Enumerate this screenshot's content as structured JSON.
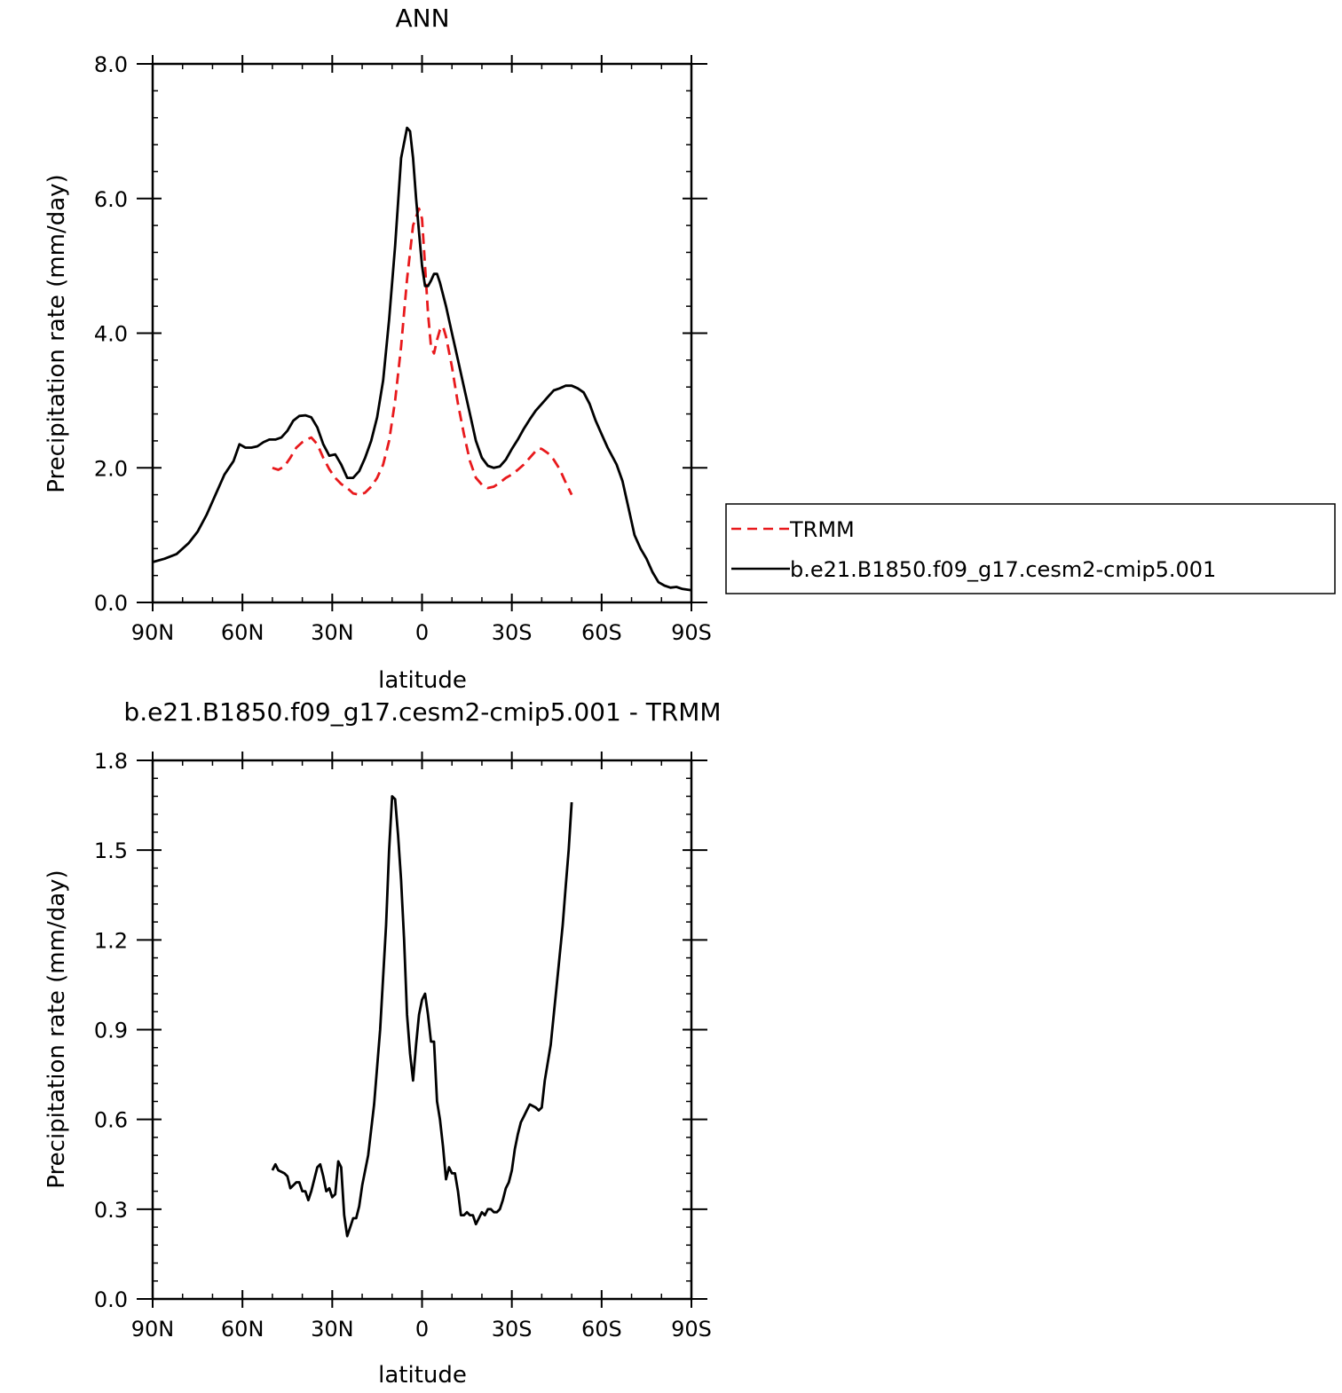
{
  "chart_data": [
    {
      "type": "line",
      "title": "ANN",
      "xlabel": "latitude",
      "ylabel": "Precipitation rate (mm/day)",
      "xlim": [
        90,
        -90
      ],
      "ylim": [
        0.0,
        8.0
      ],
      "x_ticks": [
        90,
        60,
        30,
        0,
        -30,
        -60,
        -90
      ],
      "x_tick_labels": [
        "90N",
        "60N",
        "30N",
        "0",
        "30S",
        "60S",
        "90S"
      ],
      "y_ticks": [
        0,
        2,
        4,
        6,
        8
      ],
      "y_tick_labels": [
        "0.0",
        "2.0",
        "4.0",
        "6.0",
        "8.0"
      ],
      "grid": false,
      "legend": "right",
      "series": [
        {
          "name": "TRMM",
          "color": "#e8191c",
          "dash": "dashed",
          "points": [
            [
              50,
              2.0
            ],
            [
              48,
              1.97
            ],
            [
              46,
              2.02
            ],
            [
              44,
              2.15
            ],
            [
              42,
              2.3
            ],
            [
              40,
              2.38
            ],
            [
              38,
              2.43
            ],
            [
              37,
              2.45
            ],
            [
              35,
              2.35
            ],
            [
              33,
              2.15
            ],
            [
              31,
              1.98
            ],
            [
              29,
              1.85
            ],
            [
              27,
              1.76
            ],
            [
              25,
              1.7
            ],
            [
              23,
              1.62
            ],
            [
              21,
              1.6
            ],
            [
              19,
              1.63
            ],
            [
              17,
              1.72
            ],
            [
              15,
              1.85
            ],
            [
              13,
              2.05
            ],
            [
              11,
              2.4
            ],
            [
              9,
              3.0
            ],
            [
              7,
              3.8
            ],
            [
              5,
              4.8
            ],
            [
              3,
              5.6
            ],
            [
              1,
              5.85
            ],
            [
              0,
              5.7
            ],
            [
              -1,
              5.0
            ],
            [
              -2,
              4.3
            ],
            [
              -3,
              3.8
            ],
            [
              -4,
              3.7
            ],
            [
              -5,
              3.9
            ],
            [
              -6,
              4.05
            ],
            [
              -7,
              4.1
            ],
            [
              -8,
              3.95
            ],
            [
              -10,
              3.5
            ],
            [
              -12,
              2.95
            ],
            [
              -14,
              2.5
            ],
            [
              -16,
              2.1
            ],
            [
              -18,
              1.85
            ],
            [
              -20,
              1.75
            ],
            [
              -22,
              1.7
            ],
            [
              -24,
              1.72
            ],
            [
              -26,
              1.78
            ],
            [
              -28,
              1.85
            ],
            [
              -30,
              1.9
            ],
            [
              -32,
              1.97
            ],
            [
              -34,
              2.05
            ],
            [
              -36,
              2.15
            ],
            [
              -38,
              2.25
            ],
            [
              -39,
              2.29
            ],
            [
              -40,
              2.28
            ],
            [
              -42,
              2.22
            ],
            [
              -44,
              2.12
            ],
            [
              -46,
              1.98
            ],
            [
              -48,
              1.78
            ],
            [
              -50,
              1.6
            ]
          ]
        },
        {
          "name": "b.e21.B1850.f09_g17.cesm2-cmip5.001",
          "color": "#000000",
          "dash": "solid",
          "points": [
            [
              90,
              0.6
            ],
            [
              86,
              0.65
            ],
            [
              82,
              0.72
            ],
            [
              78,
              0.88
            ],
            [
              75,
              1.05
            ],
            [
              72,
              1.3
            ],
            [
              69,
              1.6
            ],
            [
              66,
              1.9
            ],
            [
              63,
              2.1
            ],
            [
              61,
              2.35
            ],
            [
              59,
              2.3
            ],
            [
              57,
              2.3
            ],
            [
              55,
              2.32
            ],
            [
              53,
              2.38
            ],
            [
              51,
              2.42
            ],
            [
              49,
              2.42
            ],
            [
              47,
              2.45
            ],
            [
              45,
              2.55
            ],
            [
              43,
              2.7
            ],
            [
              41,
              2.77
            ],
            [
              39,
              2.78
            ],
            [
              37,
              2.75
            ],
            [
              35,
              2.6
            ],
            [
              33,
              2.35
            ],
            [
              31,
              2.18
            ],
            [
              29,
              2.2
            ],
            [
              27,
              2.05
            ],
            [
              25,
              1.85
            ],
            [
              23,
              1.85
            ],
            [
              21,
              1.95
            ],
            [
              19,
              2.15
            ],
            [
              17,
              2.4
            ],
            [
              15,
              2.75
            ],
            [
              13,
              3.3
            ],
            [
              11,
              4.2
            ],
            [
              9,
              5.3
            ],
            [
              7,
              6.6
            ],
            [
              5,
              7.05
            ],
            [
              4,
              7.0
            ],
            [
              3,
              6.6
            ],
            [
              2,
              6.0
            ],
            [
              1,
              5.5
            ],
            [
              0,
              5.0
            ],
            [
              -1,
              4.7
            ],
            [
              -2,
              4.7
            ],
            [
              -3,
              4.78
            ],
            [
              -4,
              4.88
            ],
            [
              -5,
              4.88
            ],
            [
              -6,
              4.75
            ],
            [
              -8,
              4.4
            ],
            [
              -10,
              4.0
            ],
            [
              -12,
              3.6
            ],
            [
              -14,
              3.2
            ],
            [
              -16,
              2.8
            ],
            [
              -18,
              2.4
            ],
            [
              -20,
              2.15
            ],
            [
              -22,
              2.03
            ],
            [
              -24,
              2.0
            ],
            [
              -26,
              2.02
            ],
            [
              -28,
              2.12
            ],
            [
              -30,
              2.28
            ],
            [
              -32,
              2.42
            ],
            [
              -34,
              2.58
            ],
            [
              -36,
              2.72
            ],
            [
              -38,
              2.85
            ],
            [
              -40,
              2.95
            ],
            [
              -42,
              3.05
            ],
            [
              -44,
              3.15
            ],
            [
              -46,
              3.18
            ],
            [
              -48,
              3.22
            ],
            [
              -50,
              3.22
            ],
            [
              -52,
              3.18
            ],
            [
              -54,
              3.12
            ],
            [
              -56,
              2.95
            ],
            [
              -58,
              2.7
            ],
            [
              -60,
              2.5
            ],
            [
              -62,
              2.3
            ],
            [
              -65,
              2.05
            ],
            [
              -67,
              1.8
            ],
            [
              -69,
              1.4
            ],
            [
              -71,
              1.0
            ],
            [
              -73,
              0.8
            ],
            [
              -75,
              0.65
            ],
            [
              -77,
              0.45
            ],
            [
              -79,
              0.3
            ],
            [
              -81,
              0.25
            ],
            [
              -83,
              0.22
            ],
            [
              -85,
              0.23
            ],
            [
              -87,
              0.2
            ],
            [
              -90,
              0.18
            ]
          ]
        }
      ]
    },
    {
      "type": "line",
      "title": "b.e21.B1850.f09_g17.cesm2-cmip5.001 - TRMM",
      "xlabel": "latitude",
      "ylabel": "Precipitation rate (mm/day)",
      "xlim": [
        90,
        -90
      ],
      "ylim": [
        0.0,
        1.8
      ],
      "x_ticks": [
        90,
        60,
        30,
        0,
        -30,
        -60,
        -90
      ],
      "x_tick_labels": [
        "90N",
        "60N",
        "30N",
        "0",
        "30S",
        "60S",
        "90S"
      ],
      "y_ticks": [
        0,
        0.3,
        0.6,
        0.9,
        1.2,
        1.5,
        1.8
      ],
      "y_tick_labels": [
        "0.0",
        "0.3",
        "0.6",
        "0.9",
        "1.2",
        "1.5",
        "1.8"
      ],
      "grid": false,
      "series": [
        {
          "name": "",
          "color": "#000000",
          "dash": "solid",
          "points": [
            [
              50,
              0.43
            ],
            [
              49,
              0.45
            ],
            [
              48,
              0.43
            ],
            [
              46,
              0.42
            ],
            [
              45,
              0.41
            ],
            [
              44,
              0.37
            ],
            [
              43,
              0.38
            ],
            [
              42,
              0.39
            ],
            [
              41,
              0.39
            ],
            [
              40,
              0.36
            ],
            [
              39,
              0.36
            ],
            [
              38,
              0.33
            ],
            [
              37,
              0.36
            ],
            [
              36,
              0.4
            ],
            [
              35,
              0.44
            ],
            [
              34,
              0.45
            ],
            [
              33,
              0.41
            ],
            [
              32,
              0.36
            ],
            [
              31,
              0.37
            ],
            [
              30,
              0.34
            ],
            [
              29,
              0.35
            ],
            [
              28,
              0.46
            ],
            [
              27,
              0.44
            ],
            [
              26,
              0.28
            ],
            [
              25,
              0.21
            ],
            [
              24,
              0.24
            ],
            [
              23,
              0.27
            ],
            [
              22,
              0.27
            ],
            [
              21,
              0.31
            ],
            [
              20,
              0.38
            ],
            [
              18,
              0.48
            ],
            [
              16,
              0.65
            ],
            [
              14,
              0.9
            ],
            [
              12,
              1.25
            ],
            [
              11,
              1.5
            ],
            [
              10,
              1.68
            ],
            [
              9,
              1.67
            ],
            [
              8,
              1.55
            ],
            [
              7,
              1.4
            ],
            [
              6,
              1.2
            ],
            [
              5,
              0.95
            ],
            [
              4,
              0.82
            ],
            [
              3,
              0.73
            ],
            [
              2,
              0.85
            ],
            [
              1,
              0.95
            ],
            [
              0,
              1.0
            ],
            [
              -1,
              1.02
            ],
            [
              -2,
              0.95
            ],
            [
              -3,
              0.86
            ],
            [
              -4,
              0.86
            ],
            [
              -5,
              0.66
            ],
            [
              -6,
              0.6
            ],
            [
              -7,
              0.51
            ],
            [
              -8,
              0.4
            ],
            [
              -9,
              0.44
            ],
            [
              -10,
              0.42
            ],
            [
              -11,
              0.42
            ],
            [
              -12,
              0.36
            ],
            [
              -13,
              0.28
            ],
            [
              -14,
              0.28
            ],
            [
              -15,
              0.29
            ],
            [
              -16,
              0.28
            ],
            [
              -17,
              0.28
            ],
            [
              -18,
              0.25
            ],
            [
              -19,
              0.27
            ],
            [
              -20,
              0.29
            ],
            [
              -21,
              0.28
            ],
            [
              -22,
              0.3
            ],
            [
              -23,
              0.3
            ],
            [
              -24,
              0.29
            ],
            [
              -25,
              0.29
            ],
            [
              -26,
              0.3
            ],
            [
              -27,
              0.33
            ],
            [
              -28,
              0.37
            ],
            [
              -29,
              0.39
            ],
            [
              -30,
              0.43
            ],
            [
              -31,
              0.5
            ],
            [
              -32,
              0.55
            ],
            [
              -33,
              0.59
            ],
            [
              -34,
              0.61
            ],
            [
              -35,
              0.63
            ],
            [
              -36,
              0.65
            ],
            [
              -38,
              0.64
            ],
            [
              -39,
              0.63
            ],
            [
              -40,
              0.64
            ],
            [
              -41,
              0.73
            ],
            [
              -43,
              0.85
            ],
            [
              -45,
              1.05
            ],
            [
              -47,
              1.25
            ],
            [
              -48,
              1.38
            ],
            [
              -49,
              1.5
            ],
            [
              -50,
              1.66
            ]
          ]
        }
      ]
    }
  ]
}
